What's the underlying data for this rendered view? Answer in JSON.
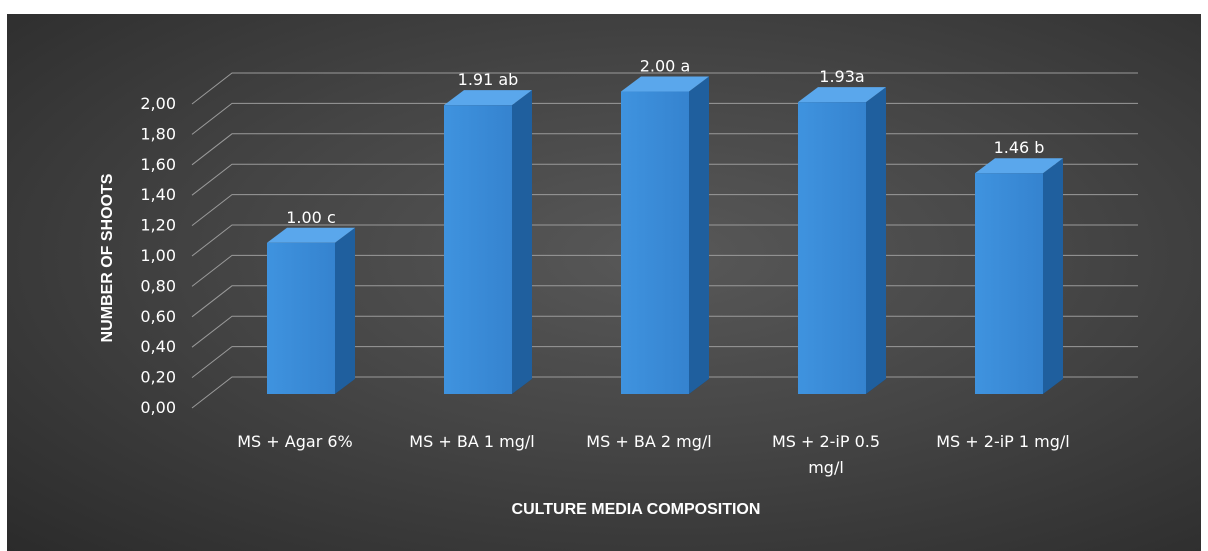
{
  "chart_data": {
    "type": "bar",
    "categories": [
      [
        "MS + Agar 6%"
      ],
      [
        "MS + BA 1 mg/l"
      ],
      [
        "MS + BA 2 mg/l"
      ],
      [
        "MS + 2-iP 0.5",
        "mg/l"
      ],
      [
        "MS + 2-iP 1 mg/l"
      ]
    ],
    "values": [
      1.0,
      1.91,
      2.0,
      1.93,
      1.46
    ],
    "data_labels": [
      "1.00 c",
      "1.91 ab",
      "2.00 a",
      "1.93a",
      "1.46 b"
    ],
    "ylabel": "NUMBER OF SHOOTS",
    "xlabel": "CULTURE MEDIA COMPOSITION",
    "ylim": [
      0,
      2.0
    ],
    "ytick_step": 0.2,
    "ytick_labels": [
      "0,00",
      "0,20",
      "0,40",
      "0,60",
      "0,80",
      "1,00",
      "1,20",
      "1,40",
      "1,60",
      "1,80",
      "2,00"
    ],
    "grid": true,
    "style": "3d-column",
    "colors": {
      "bar_front": "#3a8fdc",
      "bar_side": "#1f5f9e",
      "bar_top": "#5aa7ec",
      "background": "#464646"
    }
  }
}
